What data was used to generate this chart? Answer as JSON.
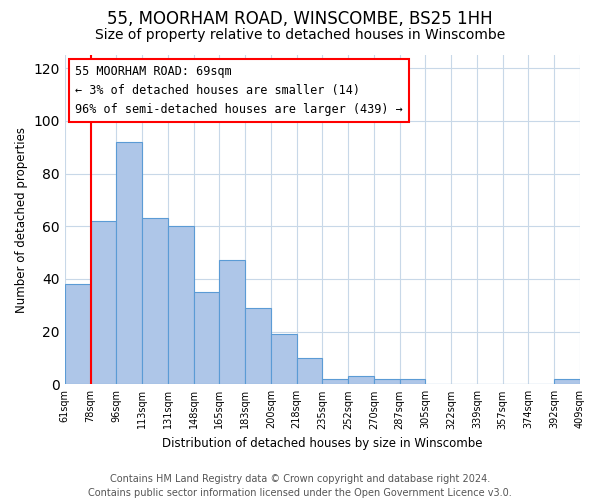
{
  "title": "55, MOORHAM ROAD, WINSCOMBE, BS25 1HH",
  "subtitle": "Size of property relative to detached houses in Winscombe",
  "xlabel": "Distribution of detached houses by size in Winscombe",
  "ylabel": "Number of detached properties",
  "bar_values": [
    38,
    62,
    92,
    63,
    60,
    35,
    47,
    29,
    19,
    10,
    2,
    3,
    2,
    2,
    0,
    0,
    0,
    0,
    0,
    2
  ],
  "bar_labels": [
    "61sqm",
    "78sqm",
    "96sqm",
    "113sqm",
    "131sqm",
    "148sqm",
    "165sqm",
    "183sqm",
    "200sqm",
    "218sqm",
    "235sqm",
    "252sqm",
    "270sqm",
    "287sqm",
    "305sqm",
    "322sqm",
    "339sqm",
    "357sqm",
    "374sqm",
    "392sqm",
    "409sqm"
  ],
  "bar_color": "#aec6e8",
  "bar_edge_color": "#5b9bd5",
  "ylim": [
    0,
    125
  ],
  "yticks": [
    0,
    20,
    40,
    60,
    80,
    100,
    120
  ],
  "red_line_x": 0.5,
  "annotation_line1": "55 MOORHAM ROAD: 69sqm",
  "annotation_line2": "← 3% of detached houses are smaller (14)",
  "annotation_line3": "96% of semi-detached houses are larger (439) →",
  "footer_line1": "Contains HM Land Registry data © Crown copyright and database right 2024.",
  "footer_line2": "Contains public sector information licensed under the Open Government Licence v3.0.",
  "background_color": "#ffffff",
  "grid_color": "#c8d8e8",
  "title_fontsize": 12,
  "subtitle_fontsize": 10,
  "annotation_fontsize": 8.5,
  "footer_fontsize": 7
}
